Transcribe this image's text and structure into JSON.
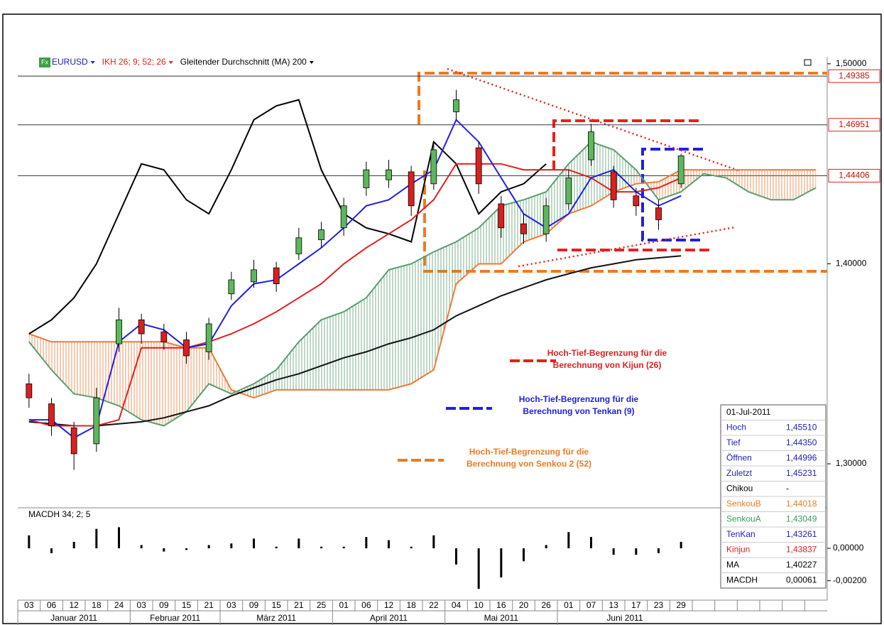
{
  "chart_data": {
    "type": "candlestick",
    "icon": "Fx",
    "legend": [
      {
        "text": "EURUSD",
        "color": "#1a1ad0"
      },
      {
        "text": "IKH 26; 9; 52; 26",
        "color": "#e02020"
      },
      {
        "text": "Gleitender Durchschnitt (MA) 200",
        "color": "#000000"
      }
    ],
    "categories": [
      "03",
      "06",
      "12",
      "18",
      "24",
      "03",
      "09",
      "15",
      "21",
      "03",
      "09",
      "15",
      "21",
      "25",
      "01",
      "06",
      "12",
      "18",
      "22",
      "04",
      "10",
      "16",
      "20",
      "26",
      "01",
      "07",
      "13",
      "17",
      "23",
      "29",
      null,
      null,
      null,
      null,
      null,
      null
    ],
    "months": [
      "Januar 2011",
      "Februar 2011",
      "März 2011",
      "April 2011",
      "Mai 2011",
      "Juni 2011"
    ],
    "ylim": [
      1.278,
      1.5035
    ],
    "yticks": [
      {
        "value": 1.5,
        "label": "1,50000"
      },
      {
        "value": 1.4,
        "label": "1,40000"
      },
      {
        "value": 1.3,
        "label": "1,30000"
      }
    ],
    "reference_lines": [
      {
        "value": 1.49385,
        "label": "1,49385"
      },
      {
        "value": 1.46951,
        "label": "1,46951"
      },
      {
        "value": 1.44406,
        "label": "1,44406"
      }
    ],
    "candles": {
      "up_color": "#5cb85c",
      "down_color": "#d9201f",
      "open": [
        1.34,
        1.33,
        1.318,
        1.31,
        1.36,
        1.372,
        1.366,
        1.362,
        1.356,
        1.385,
        1.391,
        1.398,
        1.405,
        1.412,
        1.418,
        1.438,
        1.442,
        1.446,
        1.44,
        1.476,
        1.458,
        1.43,
        1.42,
        1.415,
        1.43,
        1.452,
        1.446,
        1.434,
        1.428,
        1.44,
        null,
        null,
        null,
        null,
        null,
        null
      ],
      "high": [
        1.345,
        1.333,
        1.321,
        1.338,
        1.378,
        1.375,
        1.37,
        1.366,
        1.373,
        1.396,
        1.402,
        1.401,
        1.418,
        1.421,
        1.433,
        1.451,
        1.452,
        1.449,
        1.461,
        1.487,
        1.461,
        1.434,
        1.425,
        1.433,
        1.447,
        1.47,
        1.449,
        1.438,
        1.432,
        1.455,
        null,
        null,
        null,
        null,
        null,
        null
      ],
      "low": [
        1.328,
        1.314,
        1.297,
        1.306,
        1.356,
        1.36,
        1.357,
        1.35,
        1.352,
        1.382,
        1.388,
        1.386,
        1.402,
        1.408,
        1.414,
        1.434,
        1.438,
        1.424,
        1.437,
        1.472,
        1.435,
        1.413,
        1.41,
        1.411,
        1.427,
        1.449,
        1.428,
        1.424,
        1.417,
        1.438,
        null,
        null,
        null,
        null,
        null,
        null
      ],
      "close": [
        1.333,
        1.319,
        1.305,
        1.333,
        1.372,
        1.365,
        1.361,
        1.354,
        1.37,
        1.392,
        1.397,
        1.39,
        1.413,
        1.417,
        1.429,
        1.447,
        1.447,
        1.429,
        1.457,
        1.482,
        1.44,
        1.418,
        1.415,
        1.429,
        1.443,
        1.466,
        1.432,
        1.429,
        1.422,
        1.454,
        null,
        null,
        null,
        null,
        null,
        null
      ]
    },
    "cloud": {
      "a": {
        "color": "#5a9e6f",
        "values": [
          1.361,
          1.347,
          1.335,
          1.333,
          1.329,
          1.322,
          1.319,
          1.326,
          1.34,
          1.335,
          1.34,
          1.347,
          1.361,
          1.372,
          1.376,
          1.383,
          1.397,
          1.4,
          1.406,
          1.411,
          1.418,
          1.429,
          1.432,
          1.436,
          1.45,
          1.461,
          1.457,
          1.447,
          1.432,
          1.436,
          1.445,
          1.443,
          1.436,
          1.432,
          1.432,
          1.438
        ]
      },
      "b": {
        "color": "#f07a3a",
        "values": [
          1.365,
          1.361,
          1.361,
          1.361,
          1.361,
          1.361,
          1.361,
          1.358,
          1.358,
          1.337,
          1.333,
          1.337,
          1.337,
          1.337,
          1.337,
          1.337,
          1.337,
          1.34,
          1.347,
          1.39,
          1.4,
          1.4,
          1.411,
          1.415,
          1.425,
          1.429,
          1.436,
          1.44,
          1.441,
          1.447,
          1.447,
          1.447,
          1.447,
          1.447,
          1.447,
          1.447
        ]
      }
    },
    "lines": [
      {
        "color": "#000000",
        "values": [
          1.365,
          1.372,
          1.383,
          1.4,
          1.425,
          1.45,
          1.447,
          1.432,
          1.425,
          1.447,
          1.472,
          1.479,
          1.482,
          1.447,
          1.425,
          1.418,
          1.415,
          1.411,
          1.461,
          1.45,
          1.425,
          1.436,
          1.44,
          1.45,
          null,
          null,
          null,
          null,
          null,
          null,
          null,
          null,
          null,
          null,
          null,
          null
        ]
      },
      {
        "color": "#111111",
        "values": [
          1.321,
          1.32,
          1.319,
          1.319,
          1.32,
          1.321,
          1.323,
          1.326,
          1.329,
          1.334,
          1.338,
          1.342,
          1.345,
          1.349,
          1.353,
          1.356,
          1.36,
          1.363,
          1.367,
          1.374,
          1.379,
          1.384,
          1.388,
          1.392,
          1.395,
          1.398,
          1.4,
          1.402,
          1.403,
          1.404,
          null,
          null,
          null,
          null,
          null,
          null
        ]
      },
      {
        "color": "#e02020",
        "values": [
          1.322,
          1.319,
          1.319,
          1.319,
          1.322,
          1.358,
          1.358,
          1.358,
          1.361,
          1.365,
          1.37,
          1.376,
          1.383,
          1.39,
          1.4,
          1.408,
          1.415,
          1.422,
          1.432,
          1.45,
          1.45,
          1.45,
          1.447,
          1.447,
          1.447,
          1.443,
          1.436,
          1.436,
          1.438,
          1.443,
          null,
          null,
          null,
          null,
          null,
          null
        ]
      },
      {
        "color": "#2020e0",
        "values": [
          1.322,
          1.322,
          1.313,
          1.319,
          1.361,
          1.37,
          1.367,
          1.358,
          1.36,
          1.379,
          1.39,
          1.392,
          1.4,
          1.408,
          1.418,
          1.429,
          1.432,
          1.44,
          1.447,
          1.472,
          1.461,
          1.443,
          1.425,
          1.418,
          1.425,
          1.443,
          1.447,
          1.436,
          1.429,
          1.434,
          null,
          null,
          null,
          null,
          null,
          null
        ]
      }
    ],
    "macd": {
      "label": "MACDH 34; 2; 5",
      "color": "#000000",
      "y2lim": [
        -0.0032,
        0.0025
      ],
      "y2ticks": [
        {
          "value": 0,
          "label": "0,00000"
        },
        {
          "value": -0.002,
          "label": "-0,00200"
        }
      ],
      "values": [
        0.0008,
        -0.0003,
        0.0004,
        0.0012,
        0.0013,
        0.0002,
        -0.0002,
        -0.0001,
        0.0002,
        0.0003,
        0.0006,
        0.0001,
        0.0006,
        0.0001,
        0.0001,
        0.0007,
        0.0005,
        0.0001,
        0.0008,
        -0.001,
        -0.0025,
        -0.0018,
        -0.0008,
        0.0002,
        0.001,
        0.0007,
        -0.0004,
        -0.0004,
        -0.0003,
        0.0004,
        null,
        null,
        null,
        null,
        null,
        null
      ]
    },
    "notes": [
      {
        "color": "#e02020",
        "lines": [
          "Hoch-Tief-Begrenzung für die",
          "Berechnung von Kijun (26)"
        ]
      },
      {
        "color": "#2020e0",
        "lines": [
          "Hoch-Tief-Begrenzung für die",
          "Berechnung von Tenkan (9)"
        ]
      },
      {
        "color": "#f07a20",
        "lines": [
          "Hoch-Tief-Begrenzung für die",
          "Berechnung von Senkou 2 (52)"
        ]
      }
    ],
    "info_box": {
      "date": "01-Jul-2011",
      "rows": [
        {
          "label": "Hoch",
          "value": "1,45510",
          "color": "#2020c0"
        },
        {
          "label": "Tief",
          "value": "1,44350",
          "color": "#2020c0"
        },
        {
          "label": "Öffnen",
          "value": "1,44996",
          "color": "#2020c0"
        },
        {
          "label": "Zuletzt",
          "value": "1,45231",
          "color": "#2020c0"
        },
        {
          "label": "Chikou",
          "value": "-",
          "color": "#000000"
        },
        {
          "label": "SenkouB",
          "value": "1,44018",
          "color": "#f07a20"
        },
        {
          "label": "SenkouA",
          "value": "1,43049",
          "color": "#3a9a5a"
        },
        {
          "label": "TenKan",
          "value": "1,43261",
          "color": "#2020c0"
        },
        {
          "label": "Kinjun",
          "value": "1,43837",
          "color": "#e02020"
        },
        {
          "label": "MA",
          "value": "1,40227",
          "color": "#000000"
        },
        {
          "label": "MACDH",
          "value": "0,00061",
          "color": "#000000"
        }
      ]
    }
  }
}
